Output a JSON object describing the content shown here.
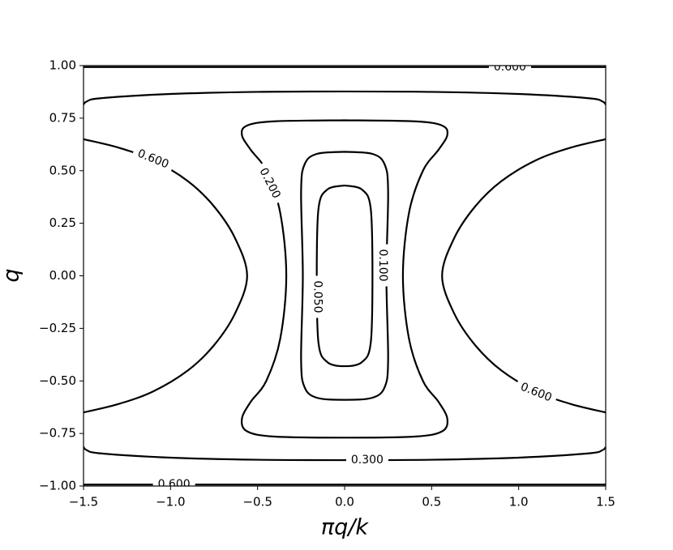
{
  "chart_data": {
    "type": "contour",
    "xlabel": "πq/k",
    "ylabel": "q",
    "color": "#000000",
    "xlim": [
      -1.5,
      1.5
    ],
    "ylim": [
      -1.0,
      1.0
    ],
    "xticks": [
      {
        "value": -1.5,
        "label": "−1.5"
      },
      {
        "value": -1.0,
        "label": "−1.0"
      },
      {
        "value": -0.5,
        "label": "−0.5"
      },
      {
        "value": 0,
        "label": "0.0"
      },
      0.5,
      {
        "value": 1.0,
        "label": "1.0"
      },
      1.5
    ],
    "yticks": [
      {
        "value": -1.0,
        "label": "−1.00"
      },
      {
        "value": -0.75,
        "label": "−0.75"
      },
      {
        "value": -0.5,
        "label": "−0.50"
      },
      {
        "value": -0.25,
        "label": "−0.25"
      },
      {
        "value": 0,
        "label": "0.00"
      },
      0.25,
      {
        "value": 0.5,
        "label": "0.50"
      },
      0.75,
      {
        "value": 1.0,
        "label": "1.00"
      }
    ],
    "contours": [
      {
        "label": "0.050",
        "x": [
          0,
          0.1,
          0.15,
          0.16,
          0.15,
          0.1,
          0,
          -0.1,
          -0.15,
          -0.16,
          -0.15,
          -0.1,
          0
        ],
        "y": [
          0.43,
          0.41,
          0.32,
          0,
          -0.32,
          -0.41,
          -0.43,
          -0.41,
          -0.32,
          0,
          0.32,
          0.41,
          0.43
        ]
      },
      {
        "label": "0.100",
        "x": [
          0,
          0.16,
          0.23,
          0.25,
          0.24,
          0.25,
          0.23,
          0.16,
          0,
          -0.16,
          -0.23,
          -0.25,
          -0.24,
          -0.25,
          -0.23,
          -0.16,
          0
        ],
        "y": [
          0.59,
          0.58,
          0.53,
          0.4,
          0,
          -0.4,
          -0.53,
          -0.58,
          -0.59,
          -0.58,
          -0.53,
          -0.4,
          0,
          0.4,
          0.53,
          0.58,
          0.59
        ]
      },
      {
        "label": "0.200",
        "x": [
          0,
          0.4,
          0.56,
          0.59,
          0.54,
          0.45,
          0.37,
          0.335,
          0.37,
          0.45,
          0.54,
          0.59,
          0.56,
          0.4,
          0,
          -0.4,
          -0.56,
          -0.59,
          -0.54,
          -0.45,
          -0.37,
          -0.335,
          -0.37,
          -0.45,
          -0.54,
          -0.59,
          -0.56,
          -0.4,
          0
        ],
        "y": [
          0.74,
          0.735,
          0.715,
          0.67,
          0.6,
          0.5,
          0.3,
          0,
          -0.3,
          -0.5,
          -0.6,
          -0.68,
          -0.74,
          -0.765,
          -0.77,
          -0.765,
          -0.74,
          -0.68,
          -0.6,
          -0.5,
          -0.3,
          0,
          0.3,
          0.5,
          0.6,
          0.67,
          0.715,
          0.735,
          0.74
        ]
      },
      {
        "x": [
          -1.5,
          -1.48,
          -1.4,
          -1.0,
          -0.5,
          0,
          0.5,
          1.0,
          1.4,
          1.48,
          1.5
        ],
        "y": [
          0.815,
          0.83,
          0.845,
          0.865,
          0.875,
          0.877,
          0.875,
          0.865,
          0.845,
          0.83,
          0.815
        ]
      },
      {
        "label": "0.300",
        "x": [
          -1.5,
          -1.48,
          -1.4,
          -1.0,
          -0.5,
          0,
          0.5,
          1.0,
          1.4,
          1.48,
          1.5
        ],
        "y": [
          -0.815,
          -0.83,
          -0.845,
          -0.865,
          -0.875,
          -0.877,
          -0.875,
          -0.865,
          -0.845,
          -0.83,
          -0.815
        ]
      },
      {
        "label": "0.600",
        "x": [
          -1.5,
          -1.3,
          -1.1,
          -0.9,
          -0.75,
          -0.63,
          -0.56,
          -0.63,
          -0.75,
          -0.9,
          -1.1,
          -1.3,
          -1.5
        ],
        "y": [
          0.65,
          0.61,
          0.55,
          0.45,
          0.33,
          0.18,
          0,
          -0.18,
          -0.33,
          -0.45,
          -0.55,
          -0.61,
          -0.65
        ]
      },
      {
        "label": "0.600",
        "x": [
          1.5,
          1.3,
          1.1,
          0.9,
          0.75,
          0.63,
          0.56,
          0.63,
          0.75,
          0.9,
          1.1,
          1.3,
          1.5
        ],
        "y": [
          0.65,
          0.61,
          0.55,
          0.45,
          0.33,
          0.18,
          0,
          -0.18,
          -0.33,
          -0.45,
          -0.55,
          -0.61,
          -0.65
        ]
      },
      {
        "label": "0.600",
        "x": [
          -1.5,
          1.5
        ],
        "y": [
          0.993,
          0.993
        ]
      },
      {
        "label": "0.600",
        "x": [
          -1.5,
          1.5
        ],
        "y": [
          -0.993,
          -0.993
        ]
      }
    ]
  }
}
